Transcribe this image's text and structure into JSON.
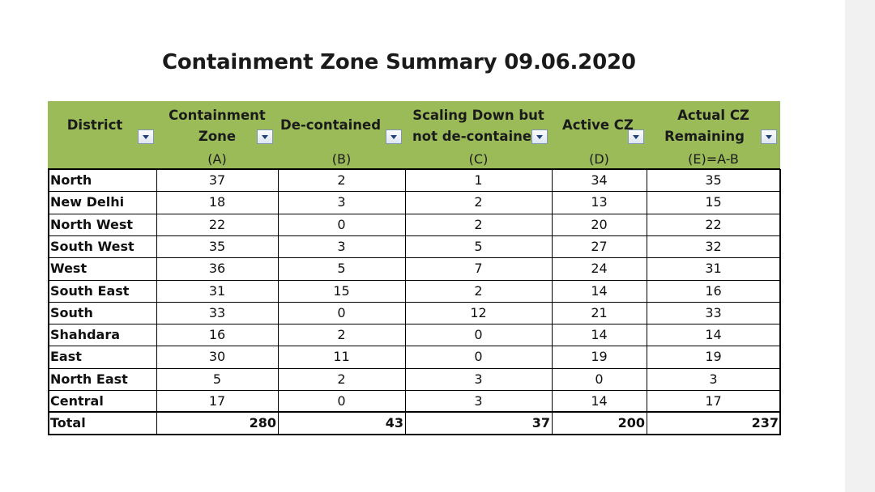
{
  "title": "Containment Zone Summary 09.06.2020",
  "header_color": "#9bbb59",
  "columns": [
    {
      "line1": "District",
      "line2": "",
      "sub": ""
    },
    {
      "line1": "Containment",
      "line2": "Zone",
      "sub": "(A)"
    },
    {
      "line1": "De-contained",
      "line2": "",
      "sub": "(B)"
    },
    {
      "line1": "Scaling Down but",
      "line2": "not de-containe",
      "sub": "(C)"
    },
    {
      "line1": "Active CZ",
      "line2": "",
      "sub": "(D)"
    },
    {
      "line1": "Actual CZ",
      "line2": "Remaining",
      "sub": "(E)=A-B"
    }
  ],
  "rows": [
    {
      "district": "North",
      "a": "37",
      "b": "2",
      "c": "1",
      "d": "34",
      "e": "35"
    },
    {
      "district": "New Delhi",
      "a": "18",
      "b": "3",
      "c": "2",
      "d": "13",
      "e": "15"
    },
    {
      "district": "North West",
      "a": "22",
      "b": "0",
      "c": "2",
      "d": "20",
      "e": "22"
    },
    {
      "district": "South West",
      "a": "35",
      "b": "3",
      "c": "5",
      "d": "27",
      "e": "32"
    },
    {
      "district": "West",
      "a": "36",
      "b": "5",
      "c": "7",
      "d": "24",
      "e": "31"
    },
    {
      "district": "South East",
      "a": "31",
      "b": "15",
      "c": "2",
      "d": "14",
      "e": "16"
    },
    {
      "district": "South",
      "a": "33",
      "b": "0",
      "c": "12",
      "d": "21",
      "e": "33"
    },
    {
      "district": "Shahdara",
      "a": "16",
      "b": "2",
      "c": "0",
      "d": "14",
      "e": "14"
    },
    {
      "district": "East",
      "a": "30",
      "b": "11",
      "c": "0",
      "d": "19",
      "e": "19"
    },
    {
      "district": "North East",
      "a": "5",
      "b": "2",
      "c": "3",
      "d": "0",
      "e": "3"
    },
    {
      "district": "Central",
      "a": "17",
      "b": "0",
      "c": "3",
      "d": "14",
      "e": "17"
    }
  ],
  "total": {
    "district": "Total",
    "a": "280",
    "b": "43",
    "c": "37",
    "d": "200",
    "e": "237"
  }
}
